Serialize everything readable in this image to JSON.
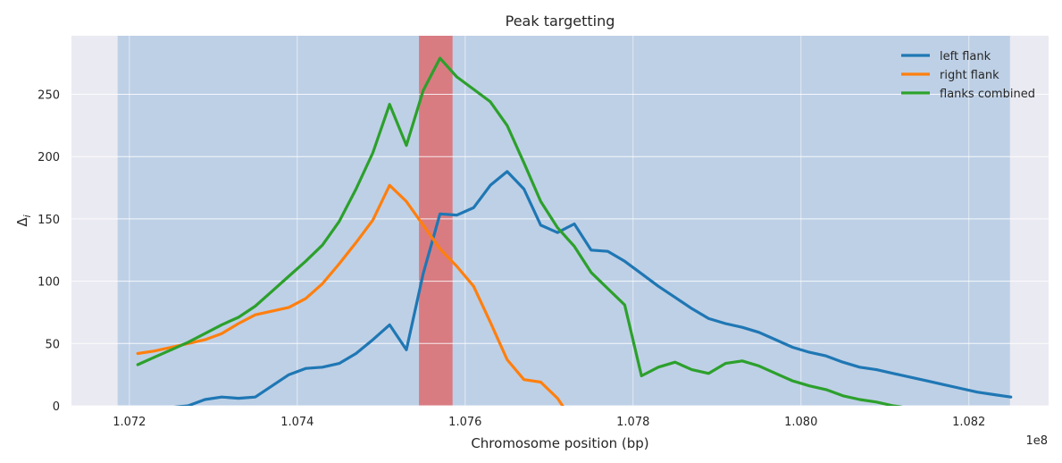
{
  "chart_data": {
    "type": "line",
    "title": "Peak targetting",
    "xlabel": "Chromosome position (bp)",
    "ylabel": "Δ_i",
    "ylabel_main": "Δ",
    "ylabel_sub": "i",
    "x_offset_label": "1e8",
    "xlim": [
      1.07131,
      1.08295
    ],
    "ylim": [
      0,
      297
    ],
    "x_ticks": [
      1.072,
      1.074,
      1.076,
      1.078,
      1.08,
      1.082
    ],
    "x_tick_labels": [
      "1.072",
      "1.074",
      "1.076",
      "1.078",
      "1.080",
      "1.082"
    ],
    "y_ticks": [
      0,
      50,
      100,
      150,
      200,
      250
    ],
    "y_tick_labels": [
      "0",
      "50",
      "100",
      "150",
      "200",
      "250"
    ],
    "grid": true,
    "legend_position": "top-right",
    "shaded_regions": [
      {
        "x0": 1.07186,
        "x1": 1.08249,
        "color": "#4c8cc8",
        "opacity": 0.28
      },
      {
        "x0": 1.07545,
        "x1": 1.07585,
        "color": "#e06060",
        "opacity": 0.75
      }
    ],
    "series": [
      {
        "name": "left flank",
        "color": "#1f77b4",
        "x": [
          1.0724,
          1.0727,
          1.0729,
          1.0731,
          1.0733,
          1.0735,
          1.0737,
          1.0739,
          1.0741,
          1.0743,
          1.0745,
          1.0747,
          1.0749,
          1.0751,
          1.0753,
          1.0755,
          1.0757,
          1.0759,
          1.0761,
          1.0763,
          1.0765,
          1.0767,
          1.0769,
          1.0771,
          1.0773,
          1.0775,
          1.0777,
          1.0779,
          1.0781,
          1.0783,
          1.0785,
          1.0787,
          1.0789,
          1.0791,
          1.0793,
          1.0795,
          1.0797,
          1.0799,
          1.0801,
          1.0803,
          1.0805,
          1.0807,
          1.0809,
          1.0811,
          1.0813,
          1.0815,
          1.0817,
          1.0819,
          1.0821,
          1.0823,
          1.0825
        ],
        "values": [
          -2,
          0,
          5,
          7,
          6,
          7,
          16,
          25,
          30,
          31,
          34,
          42,
          53,
          65,
          45,
          106,
          154,
          153,
          159,
          177,
          188,
          174,
          145,
          139,
          146,
          125,
          124,
          116,
          106,
          96,
          87,
          78,
          70,
          66,
          63,
          59,
          53,
          47,
          43,
          40,
          35,
          31,
          29,
          26,
          23,
          20,
          17,
          14,
          11,
          9,
          7
        ]
      },
      {
        "name": "right flank",
        "color": "#ff7f0e",
        "x": [
          1.0721,
          1.0723,
          1.0725,
          1.0727,
          1.0729,
          1.0731,
          1.0733,
          1.0735,
          1.0737,
          1.0739,
          1.0741,
          1.0743,
          1.0745,
          1.0747,
          1.0749,
          1.0751,
          1.0753,
          1.0755,
          1.0757,
          1.0759,
          1.0761,
          1.0763,
          1.0765,
          1.0767,
          1.0769,
          1.0771,
          1.0772
        ],
        "values": [
          42,
          44,
          47,
          50,
          53,
          58,
          66,
          73,
          76,
          79,
          86,
          98,
          114,
          131,
          149,
          177,
          164,
          145,
          126,
          112,
          96,
          67,
          37,
          21,
          19,
          6,
          -4
        ]
      },
      {
        "name": "flanks combined",
        "color": "#2ca02c",
        "x": [
          1.0721,
          1.0723,
          1.0725,
          1.0727,
          1.0729,
          1.0731,
          1.0733,
          1.0735,
          1.0737,
          1.0739,
          1.0741,
          1.0743,
          1.0745,
          1.0747,
          1.0749,
          1.0751,
          1.0753,
          1.0755,
          1.0757,
          1.0759,
          1.0761,
          1.0763,
          1.0765,
          1.0767,
          1.0769,
          1.0771,
          1.0773,
          1.0775,
          1.0777,
          1.0779,
          1.0781,
          1.0783,
          1.0785,
          1.0787,
          1.0789,
          1.0791,
          1.0793,
          1.0795,
          1.0797,
          1.0799,
          1.0801,
          1.0803,
          1.0805,
          1.0807,
          1.0809,
          1.0811,
          1.0813
        ],
        "values": [
          33,
          39,
          45,
          51,
          58,
          65,
          71,
          80,
          92,
          104,
          116,
          129,
          148,
          174,
          203,
          242,
          209,
          253,
          279,
          264,
          254,
          244,
          225,
          195,
          164,
          143,
          128,
          107,
          94,
          81,
          24,
          31,
          35,
          29,
          26,
          34,
          36,
          32,
          26,
          20,
          16,
          13,
          8,
          5,
          3,
          0,
          -2
        ]
      }
    ]
  }
}
